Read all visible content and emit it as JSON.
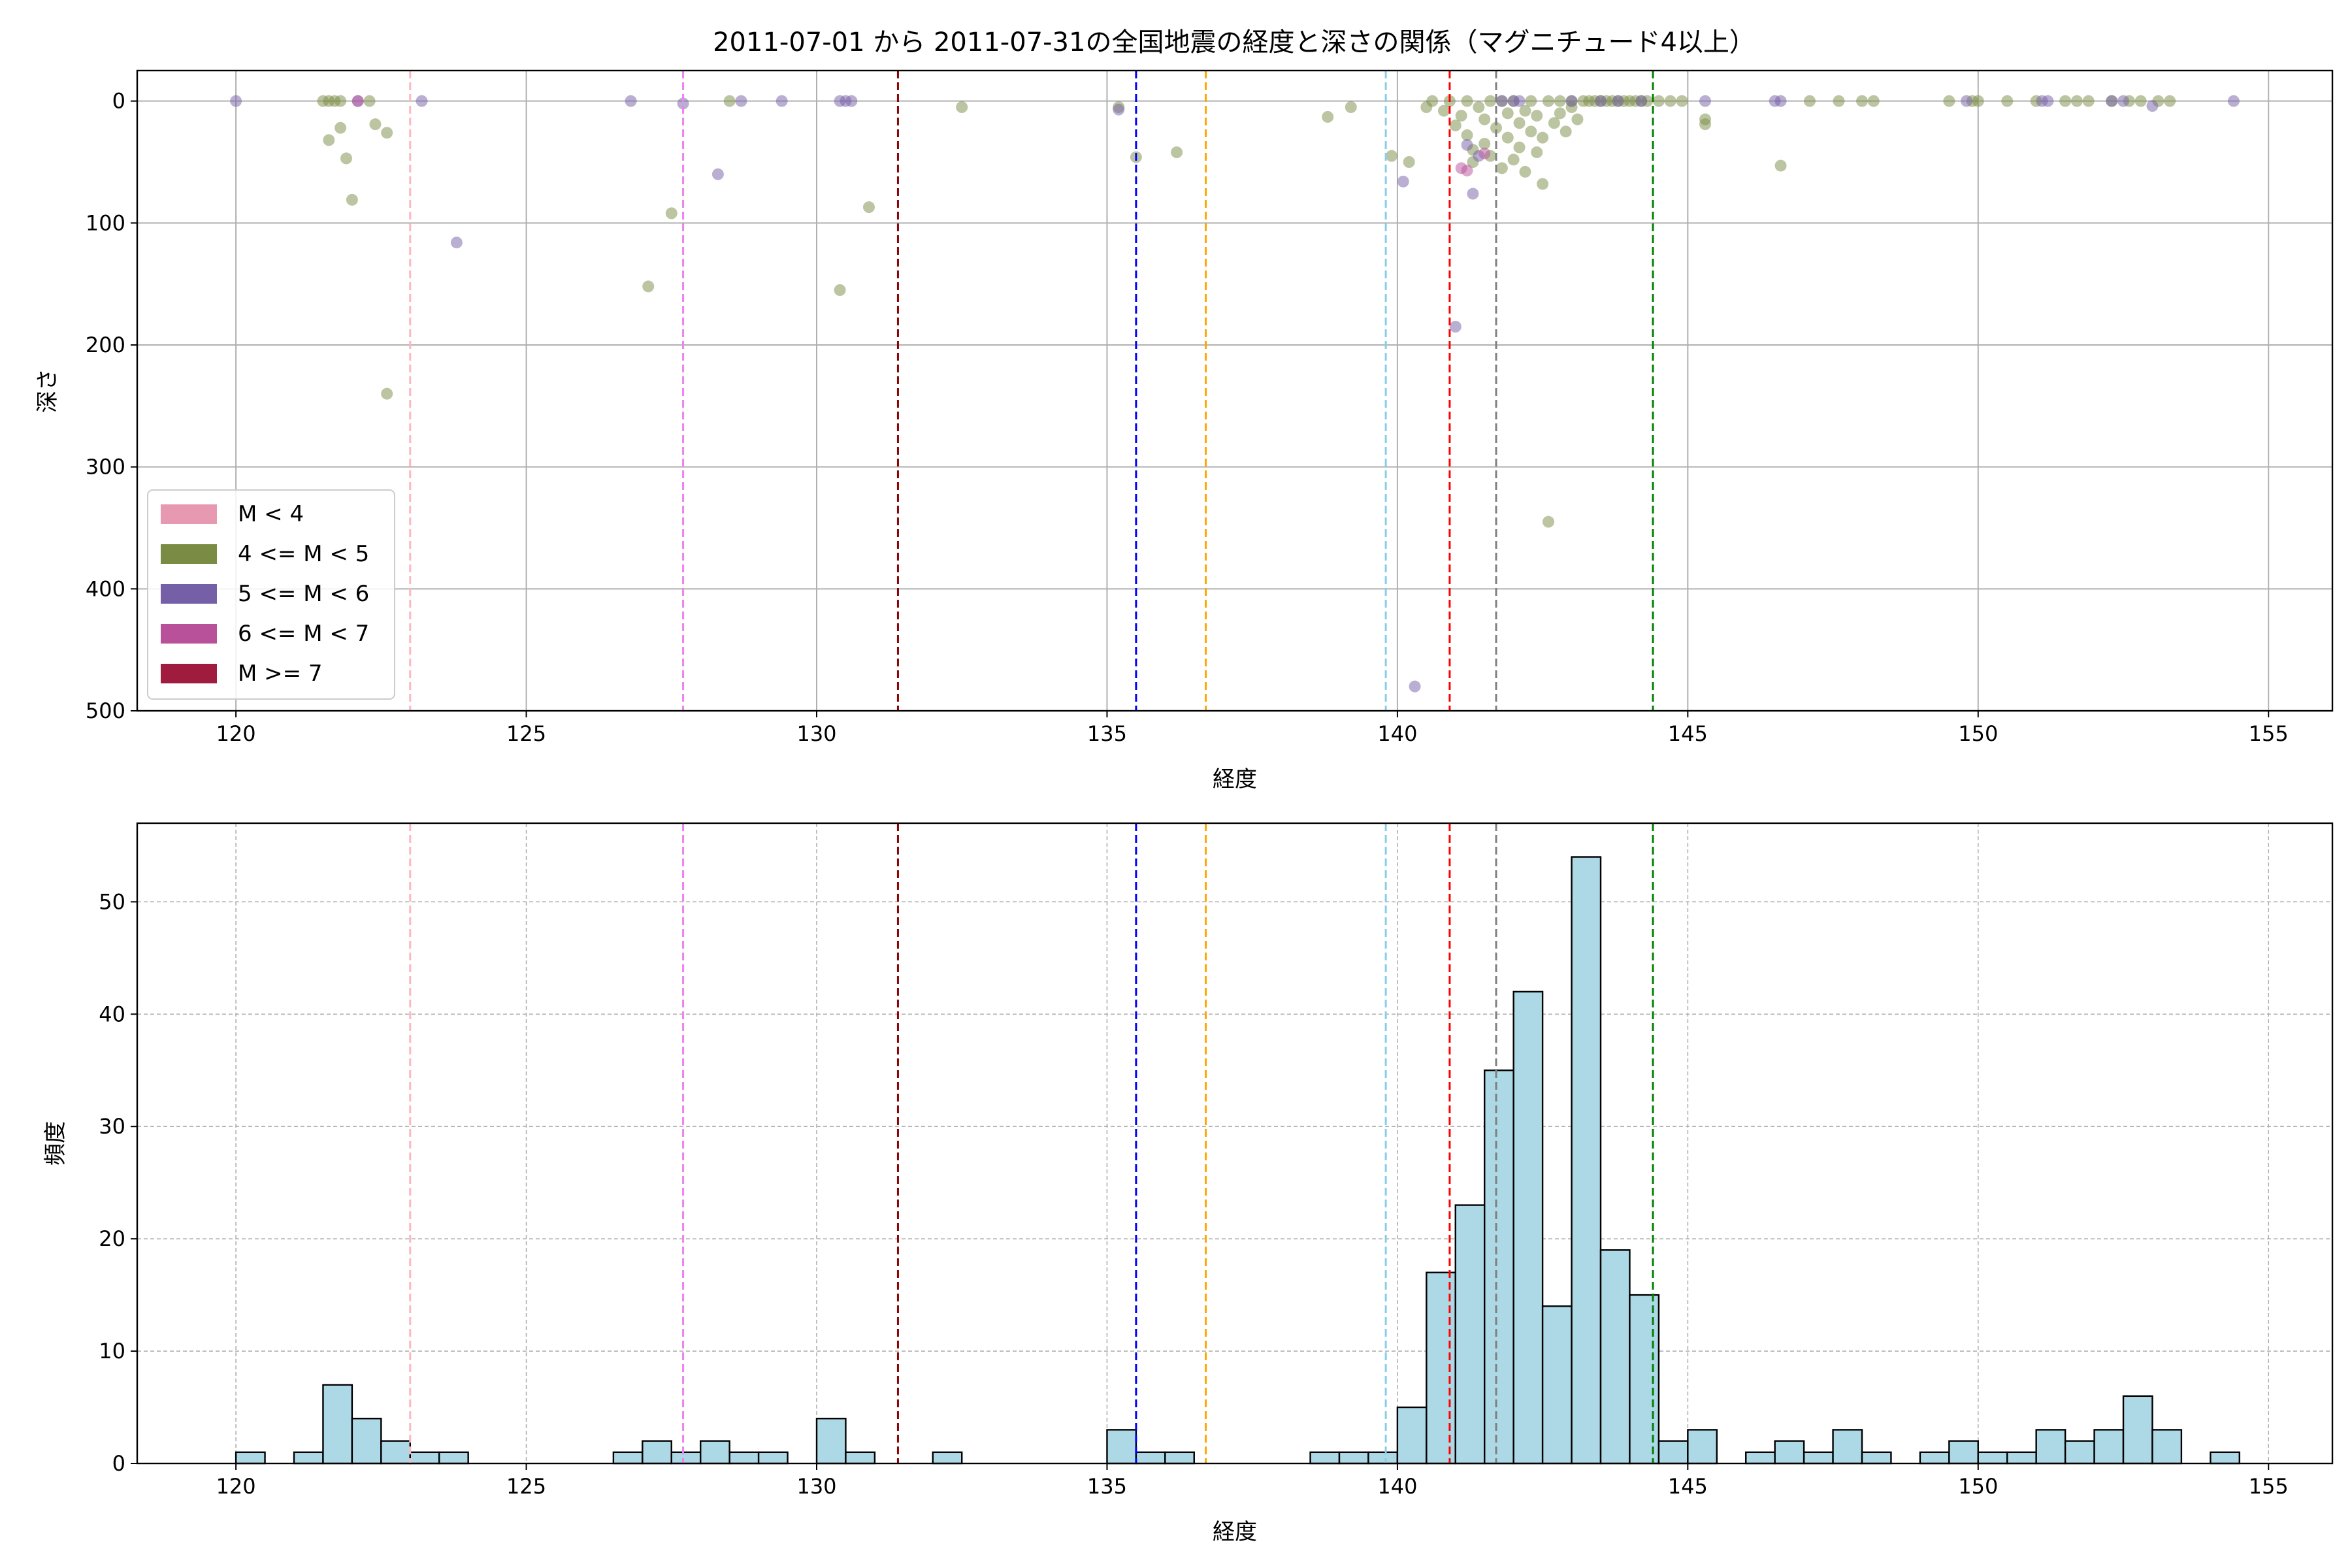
{
  "chart_data": [
    {
      "type": "scatter",
      "title": "2011-07-01 から 2011-07-31の全国地震の経度と深さの関係（マグニチュード4以上）",
      "xlabel": "経度",
      "ylabel": "深さ",
      "xlim": [
        118.3,
        156.1
      ],
      "ylim": [
        500,
        -25
      ],
      "y_inverted": true,
      "xticks": [
        "120",
        "125",
        "130",
        "135",
        "140",
        "145",
        "150",
        "155"
      ],
      "yticks": [
        "0",
        "100",
        "200",
        "300",
        "400",
        "500"
      ],
      "grid": true,
      "legend_position": "lower-left",
      "legend": [
        {
          "label": "M < 4",
          "color": "#e899b2"
        },
        {
          "label": "4 <= M < 5",
          "color": "#7a8b44"
        },
        {
          "label": "5 <= M < 6",
          "color": "#7560a8"
        },
        {
          "label": "6 <= M < 7",
          "color": "#b8509a"
        },
        {
          "label": "M >= 7",
          "color": "#a01c3e"
        }
      ],
      "vlines": [
        {
          "x": 123.0,
          "color": "#ffb6c1"
        },
        {
          "x": 127.7,
          "color": "#ee82ee"
        },
        {
          "x": 131.4,
          "color": "#8b0000"
        },
        {
          "x": 135.5,
          "color": "#0000ff"
        },
        {
          "x": 136.7,
          "color": "#ffa500"
        },
        {
          "x": 139.8,
          "color": "#87ceeb"
        },
        {
          "x": 140.9,
          "color": "#ff0000"
        },
        {
          "x": 141.7,
          "color": "#808080"
        },
        {
          "x": 144.4,
          "color": "#008000"
        }
      ],
      "series": [
        {
          "name": "4 <= M < 5",
          "color": "#7a8b44",
          "points": [
            [
              121.5,
              0
            ],
            [
              121.6,
              0
            ],
            [
              121.7,
              0
            ],
            [
              121.8,
              0
            ],
            [
              121.6,
              32
            ],
            [
              121.8,
              22
            ],
            [
              121.9,
              47
            ],
            [
              122.0,
              81
            ],
            [
              122.3,
              0
            ],
            [
              122.4,
              19
            ],
            [
              122.6,
              26
            ],
            [
              122.6,
              240
            ],
            [
              127.1,
              152
            ],
            [
              127.5,
              92
            ],
            [
              128.5,
              0
            ],
            [
              130.4,
              155
            ],
            [
              130.9,
              87
            ],
            [
              132.5,
              5
            ],
            [
              135.2,
              5
            ],
            [
              135.5,
              46
            ],
            [
              136.2,
              42
            ],
            [
              138.8,
              13
            ],
            [
              139.2,
              5
            ],
            [
              139.9,
              45
            ],
            [
              140.2,
              50
            ],
            [
              140.5,
              5
            ],
            [
              140.6,
              0
            ],
            [
              140.8,
              8
            ],
            [
              140.9,
              0
            ],
            [
              141.0,
              20
            ],
            [
              141.1,
              12
            ],
            [
              141.2,
              0
            ],
            [
              141.2,
              28
            ],
            [
              141.3,
              40
            ],
            [
              141.3,
              50
            ],
            [
              141.4,
              5
            ],
            [
              141.5,
              15
            ],
            [
              141.5,
              35
            ],
            [
              141.6,
              0
            ],
            [
              141.6,
              45
            ],
            [
              141.7,
              22
            ],
            [
              141.8,
              55
            ],
            [
              141.8,
              0
            ],
            [
              141.9,
              10
            ],
            [
              141.9,
              30
            ],
            [
              142.0,
              48
            ],
            [
              142.0,
              0
            ],
            [
              142.1,
              18
            ],
            [
              142.1,
              38
            ],
            [
              142.2,
              58
            ],
            [
              142.2,
              8
            ],
            [
              142.3,
              25
            ],
            [
              142.3,
              0
            ],
            [
              142.4,
              42
            ],
            [
              142.4,
              12
            ],
            [
              142.5,
              30
            ],
            [
              142.5,
              68
            ],
            [
              142.6,
              0
            ],
            [
              142.6,
              345
            ],
            [
              142.7,
              18
            ],
            [
              142.8,
              0
            ],
            [
              142.8,
              10
            ],
            [
              142.9,
              25
            ],
            [
              143.0,
              5
            ],
            [
              143.0,
              0
            ],
            [
              143.1,
              15
            ],
            [
              143.2,
              0
            ],
            [
              143.3,
              0
            ],
            [
              143.4,
              0
            ],
            [
              143.5,
              0
            ],
            [
              143.6,
              0
            ],
            [
              143.7,
              0
            ],
            [
              143.8,
              0
            ],
            [
              143.9,
              0
            ],
            [
              144.0,
              0
            ],
            [
              144.1,
              0
            ],
            [
              144.2,
              0
            ],
            [
              144.3,
              0
            ],
            [
              144.5,
              0
            ],
            [
              144.7,
              0
            ],
            [
              144.9,
              0
            ],
            [
              145.3,
              15
            ],
            [
              145.3,
              19
            ],
            [
              146.6,
              53
            ],
            [
              147.1,
              0
            ],
            [
              147.6,
              0
            ],
            [
              148.0,
              0
            ],
            [
              148.2,
              0
            ],
            [
              149.5,
              0
            ],
            [
              149.9,
              0
            ],
            [
              150.0,
              0
            ],
            [
              150.5,
              0
            ],
            [
              151.0,
              0
            ],
            [
              151.5,
              0
            ],
            [
              151.7,
              0
            ],
            [
              151.9,
              0
            ],
            [
              152.3,
              0
            ],
            [
              152.6,
              0
            ],
            [
              152.8,
              0
            ],
            [
              153.1,
              0
            ],
            [
              153.3,
              0
            ]
          ]
        },
        {
          "name": "5 <= M < 6",
          "color": "#7560a8",
          "points": [
            [
              120.0,
              0
            ],
            [
              122.1,
              0
            ],
            [
              123.2,
              0
            ],
            [
              123.8,
              116
            ],
            [
              126.8,
              0
            ],
            [
              127.7,
              2
            ],
            [
              128.3,
              60
            ],
            [
              128.7,
              0
            ],
            [
              129.4,
              0
            ],
            [
              130.4,
              0
            ],
            [
              130.5,
              0
            ],
            [
              130.6,
              0
            ],
            [
              135.2,
              7
            ],
            [
              140.1,
              66
            ],
            [
              140.3,
              480
            ],
            [
              141.0,
              185
            ],
            [
              141.3,
              76
            ],
            [
              141.4,
              45
            ],
            [
              141.2,
              36
            ],
            [
              141.8,
              0
            ],
            [
              142.0,
              0
            ],
            [
              142.1,
              0
            ],
            [
              143.0,
              0
            ],
            [
              143.5,
              0
            ],
            [
              143.8,
              0
            ],
            [
              144.2,
              0
            ],
            [
              145.3,
              0
            ],
            [
              146.5,
              0
            ],
            [
              146.6,
              0
            ],
            [
              149.8,
              0
            ],
            [
              151.1,
              0
            ],
            [
              151.2,
              0
            ],
            [
              152.3,
              0
            ],
            [
              152.5,
              0
            ],
            [
              153.0,
              4
            ],
            [
              154.4,
              0
            ]
          ]
        },
        {
          "name": "6 <= M < 7",
          "color": "#b8509a",
          "points": [
            [
              122.1,
              0
            ],
            [
              141.1,
              55
            ],
            [
              141.2,
              57
            ],
            [
              141.5,
              43
            ]
          ]
        }
      ]
    },
    {
      "type": "bar",
      "xlabel": "経度",
      "ylabel": "頻度",
      "xlim": [
        118.3,
        156.1
      ],
      "ylim": [
        0,
        57
      ],
      "xticks": [
        "120",
        "125",
        "130",
        "135",
        "140",
        "145",
        "150",
        "155"
      ],
      "yticks": [
        "0",
        "10",
        "20",
        "30",
        "40",
        "50"
      ],
      "grid": true,
      "bar_color": "#add8e6",
      "bin_start": 120.0,
      "bin_width": 0.5,
      "values": [
        1,
        0,
        1,
        7,
        4,
        2,
        1,
        1,
        0,
        0,
        0,
        0,
        0,
        1,
        2,
        1,
        2,
        1,
        1,
        0,
        4,
        1,
        0,
        0,
        1,
        0,
        0,
        0,
        0,
        0,
        3,
        1,
        1,
        0,
        0,
        0,
        0,
        1,
        1,
        1,
        5,
        17,
        23,
        35,
        42,
        14,
        54,
        19,
        15,
        2,
        3,
        0,
        1,
        2,
        1,
        3,
        1,
        0,
        1,
        2,
        1,
        1,
        3,
        2,
        3,
        6,
        3,
        0,
        1
      ],
      "vlines": [
        {
          "x": 123.0,
          "color": "#ffb6c1"
        },
        {
          "x": 127.7,
          "color": "#ee82ee"
        },
        {
          "x": 131.4,
          "color": "#8b0000"
        },
        {
          "x": 135.5,
          "color": "#0000ff"
        },
        {
          "x": 136.7,
          "color": "#ffa500"
        },
        {
          "x": 139.8,
          "color": "#87ceeb"
        },
        {
          "x": 140.9,
          "color": "#ff0000"
        },
        {
          "x": 141.7,
          "color": "#808080"
        },
        {
          "x": 144.4,
          "color": "#008000"
        }
      ]
    }
  ]
}
